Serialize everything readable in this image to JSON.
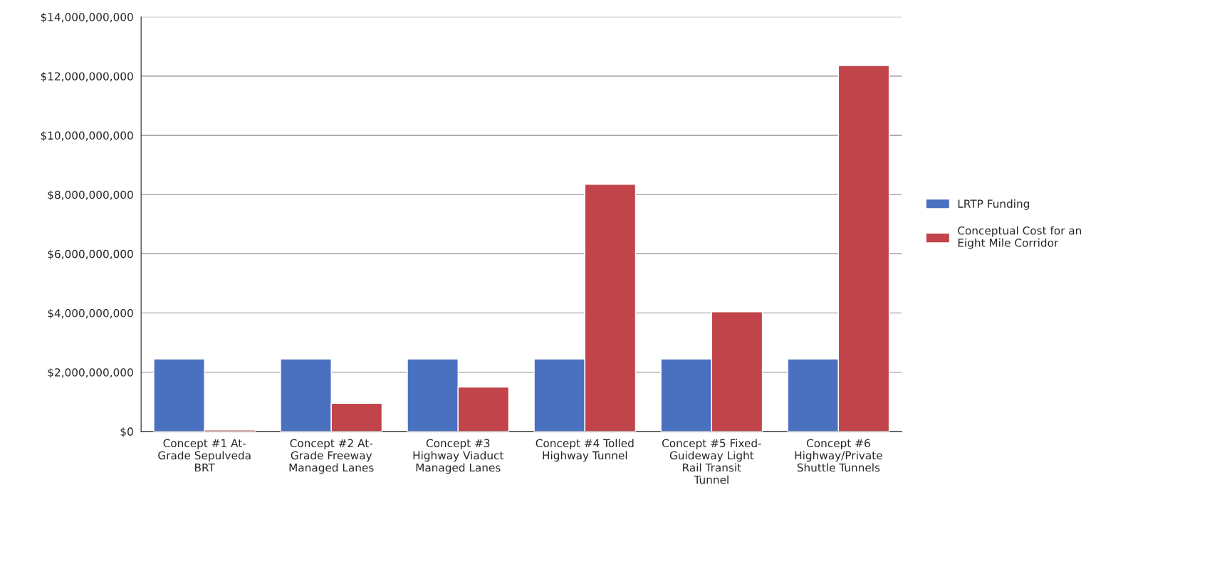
{
  "chart_data": {
    "type": "bar",
    "categories": [
      "Concept #1 At-\nGrade Sepulveda\nBRT",
      "Concept #2 At-\nGrade Freeway\nManaged Lanes",
      "Concept #3\nHighway Viaduct\nManaged Lanes",
      "Concept #4 Tolled\nHighway Tunnel",
      "Concept #5 Fixed-\nGuideway Light\nRail Transit\nTunnel",
      "Concept #6\nHighway/Private\nShuttle Tunnels"
    ],
    "series": [
      {
        "name": "LRTP Funding",
        "color": "#4a70c0",
        "values": [
          2450000000,
          2450000000,
          2450000000,
          2450000000,
          2450000000,
          2450000000
        ]
      },
      {
        "name": "Conceptual Cost for an\nEight Mile Corridor",
        "color": "#c0444a",
        "values": [
          50000000,
          950000000,
          1500000000,
          8350000000,
          4040000000,
          12360000000
        ]
      }
    ],
    "ylim": [
      0,
      14000000000
    ],
    "yticks": [
      {
        "value": 0,
        "label": "$0"
      },
      {
        "value": 2000000000,
        "label": "$2,000,000,000"
      },
      {
        "value": 4000000000,
        "label": "$4,000,000,000"
      },
      {
        "value": 6000000000,
        "label": "$6,000,000,000"
      },
      {
        "value": 8000000000,
        "label": "$8,000,000,000"
      },
      {
        "value": 10000000000,
        "label": "$10,000,000,000"
      },
      {
        "value": 12000000000,
        "label": "$12,000,000,000"
      },
      {
        "value": 14000000000,
        "label": "$14,000,000,000"
      }
    ],
    "grid": "y",
    "legend": "right"
  }
}
